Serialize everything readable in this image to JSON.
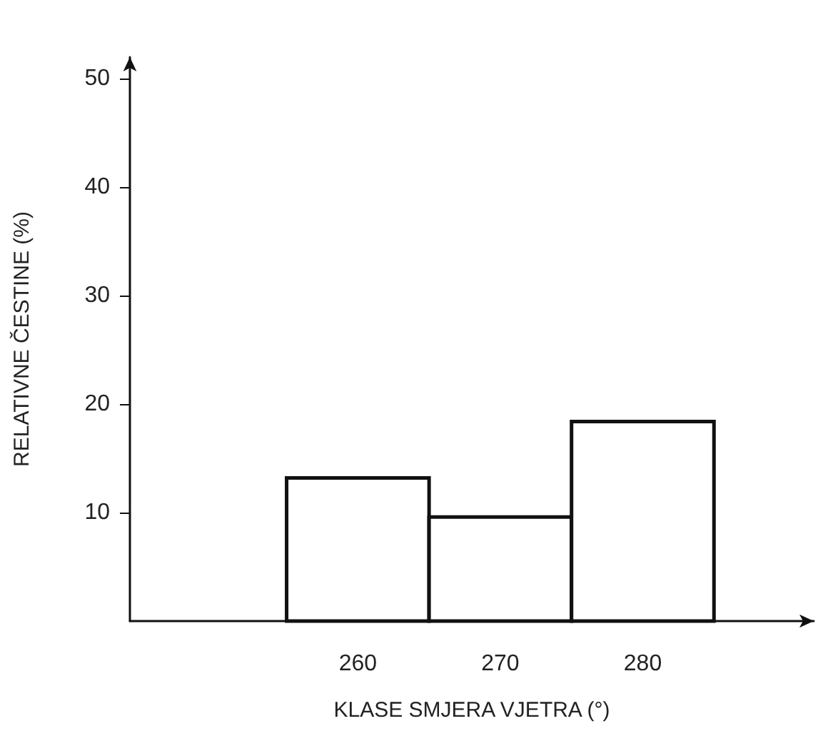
{
  "chart_data": {
    "type": "histogram",
    "xlabel": "KLASE SMJERA VJETRA (°)",
    "ylabel": "RELATIVNE ČESTINE (%)",
    "bins": [
      255,
      265,
      275,
      285
    ],
    "values": [
      13.2,
      9.6,
      18.4
    ],
    "color": "#ffffff",
    "xlim": [
      244,
      292
    ],
    "ylim": [
      0,
      52
    ],
    "xticks": [
      260,
      270,
      280
    ],
    "yticks": [
      10,
      20,
      30,
      40,
      50
    ],
    "grid": false
  }
}
